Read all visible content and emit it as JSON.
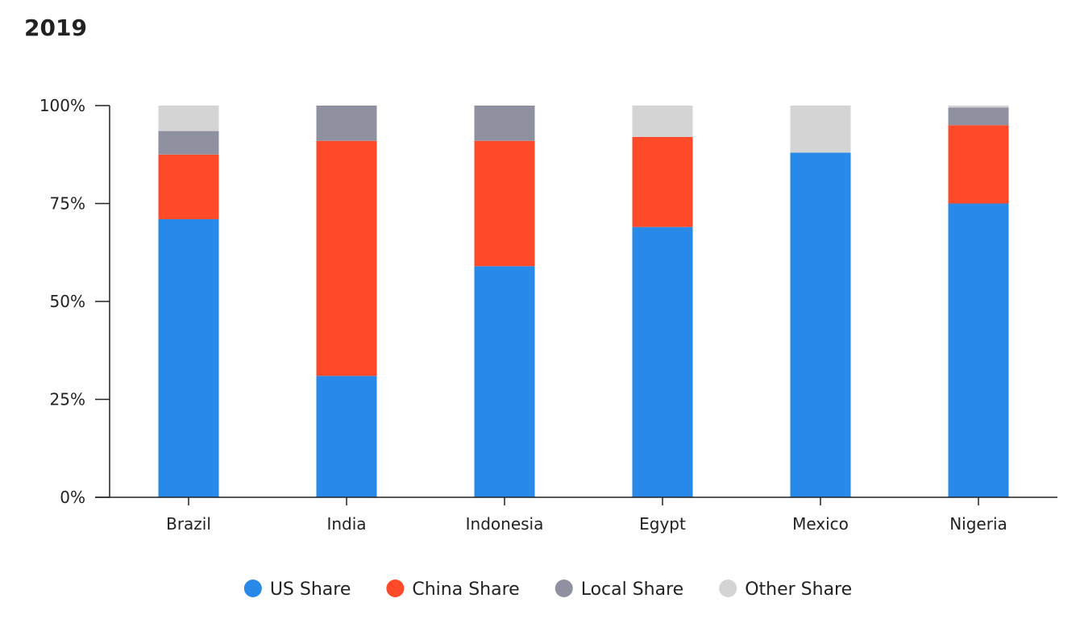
{
  "title": "2019",
  "chart_data": {
    "type": "bar",
    "stacked": true,
    "title": "2019",
    "xlabel": "",
    "ylabel": "",
    "ylim": [
      0,
      100
    ],
    "y_ticks": [
      "0%",
      "25%",
      "50%",
      "75%",
      "100%"
    ],
    "y_tick_values": [
      0,
      25,
      50,
      75,
      100
    ],
    "categories": [
      "Brazil",
      "India",
      "Indonesia",
      "Egypt",
      "Mexico",
      "Nigeria"
    ],
    "series": [
      {
        "name": "US Share",
        "color": "#2889E8",
        "values": [
          71,
          31,
          59,
          69,
          88,
          75
        ]
      },
      {
        "name": "China Share",
        "color": "#FF4A2A",
        "values": [
          16.5,
          60,
          32,
          23,
          0,
          20
        ]
      },
      {
        "name": "Local Share",
        "color": "#9091A0",
        "values": [
          6,
          9,
          9,
          0,
          0,
          4.5
        ]
      },
      {
        "name": "Other Share",
        "color": "#D4D4D4",
        "values": [
          6.5,
          0,
          0,
          8,
          12,
          0.5
        ]
      }
    ],
    "legend_position": "bottom",
    "grid": false
  }
}
